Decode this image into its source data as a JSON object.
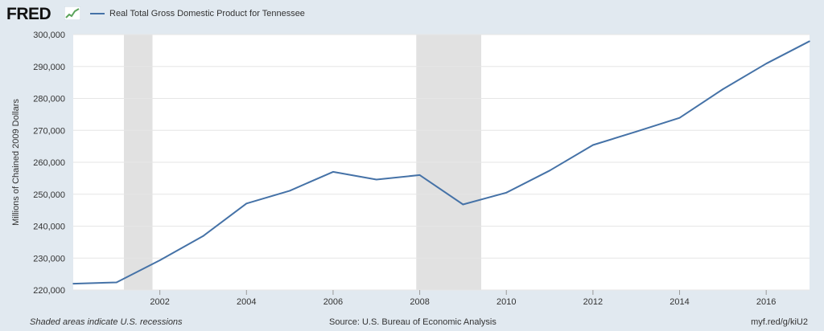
{
  "header": {
    "logo_text": "FRED",
    "legend_label": "Real Total Gross Domestic Product for Tennessee"
  },
  "colors": {
    "background": "#e1e9f0",
    "series": "#4572a7",
    "recession": "#e1e1e1",
    "grid": "#e6e6e6"
  },
  "footer": {
    "left": "Shaded areas indicate U.S. recessions",
    "source": "Source: U.S. Bureau of Economic Analysis",
    "link": "myf.red/g/kiU2"
  },
  "chart_data": {
    "type": "line",
    "title": "",
    "xlabel": "",
    "ylabel": "Millions of Chained 2009 Dollars",
    "x": [
      2000,
      2001,
      2002,
      2003,
      2004,
      2005,
      2006,
      2007,
      2008,
      2009,
      2010,
      2011,
      2012,
      2013,
      2014,
      2015,
      2016,
      2017
    ],
    "series": [
      {
        "name": "Real Total Gross Domestic Product for Tennessee",
        "values": [
          222000,
          222400,
          229300,
          236900,
          247100,
          251100,
          257000,
          254600,
          256000,
          246800,
          250500,
          257400,
          265400,
          269600,
          273900,
          282900,
          290900,
          297900
        ]
      }
    ],
    "xlim": [
      2000,
      2017
    ],
    "ylim": [
      220000,
      300000
    ],
    "yticks": [
      220000,
      230000,
      240000,
      250000,
      260000,
      270000,
      280000,
      290000,
      300000
    ],
    "yticklabels": [
      "220,000",
      "230,000",
      "240,000",
      "250,000",
      "260,000",
      "270,000",
      "280,000",
      "290,000",
      "300,000"
    ],
    "xticks": [
      2002,
      2004,
      2006,
      2008,
      2010,
      2012,
      2014,
      2016
    ],
    "xticklabels": [
      "2002",
      "2004",
      "2006",
      "2008",
      "2010",
      "2012",
      "2014",
      "2016"
    ],
    "recessions": [
      [
        2001.17,
        2001.83
      ],
      [
        2007.92,
        2009.42
      ]
    ],
    "grid": true
  }
}
